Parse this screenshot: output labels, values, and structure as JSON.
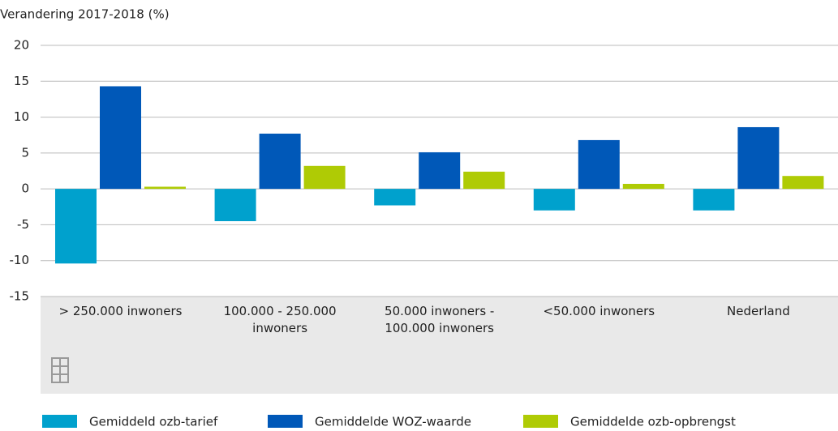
{
  "chart_data": {
    "type": "bar",
    "y_axis_label": "Verandering 2017-2018 (%)",
    "categories": [
      "> 250.000 inwoners",
      "100.000 - 250.000 inwoners",
      "50.000 inwoners - 100.000 inwoners",
      "<50.000 inwoners",
      "Nederland"
    ],
    "series": [
      {
        "name": "Gemiddeld ozb-tarief",
        "color": "#00a1cd",
        "values": [
          -10.4,
          -4.5,
          -2.3,
          -3.0,
          -3.0
        ]
      },
      {
        "name": "Gemiddelde WOZ-waarde",
        "color": "#0058b8",
        "values": [
          14.3,
          7.7,
          5.1,
          6.8,
          8.6
        ]
      },
      {
        "name": "Gemiddelde ozb-opbrengst",
        "color": "#afcb05",
        "values": [
          0.3,
          3.2,
          2.4,
          0.7,
          1.8
        ]
      }
    ],
    "ylim": [
      -15,
      20
    ],
    "yticks": [
      -15,
      -10,
      -5,
      0,
      5,
      10,
      15,
      20
    ],
    "grid": true,
    "legend": "bottom"
  }
}
